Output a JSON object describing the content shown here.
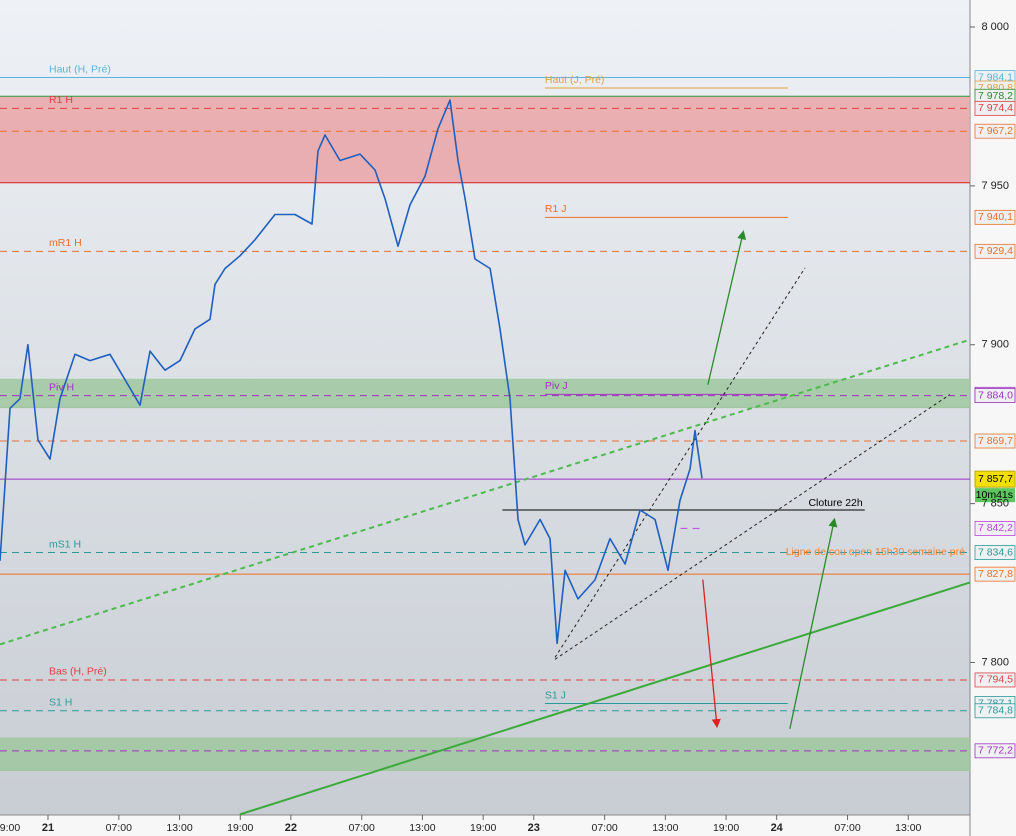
{
  "chart_data": {
    "type": "line",
    "color": "#1f5fbf",
    "x": [
      -4.74,
      -3.75,
      -2.77,
      -1.98,
      -0.99,
      0.2,
      1.19,
      2.67,
      4.15,
      6.13,
      7.61,
      9.09,
      10.08,
      11.56,
      13.04,
      14.53,
      16.01,
      16.5,
      17.49,
      18.97,
      20.45,
      22.43,
      24.41,
      26.09,
      26.68,
      27.37,
      28.85,
      30.83,
      32.31,
      33.3,
      34.58,
      35.77,
      37.25,
      38.54,
      39.72,
      40.51,
      41.21,
      42.19,
      43.68,
      44.66,
      45.65,
      46.44,
      47.13,
      48.62,
      49.6,
      50.3,
      51.09,
      52.37,
      54.05,
      55.53,
      57.02,
      58.5,
      59.98,
      61.26,
      62.45,
      63.44,
      63.93,
      64.62
    ],
    "values": [
      7832,
      7880,
      7883,
      7900,
      7870,
      7864,
      7883,
      7897,
      7895,
      7897,
      7889,
      7881,
      7898,
      7892,
      7895,
      7905,
      7908,
      7919,
      7924,
      7928,
      7933,
      7941,
      7941,
      7938,
      7961,
      7966,
      7958,
      7960,
      7955,
      7946,
      7931,
      7944,
      7953,
      7968,
      7977,
      7958,
      7946,
      7927,
      7924,
      7905,
      7883,
      7845,
      7837,
      7845,
      7839,
      7806,
      7829,
      7820,
      7826,
      7839,
      7831,
      7848,
      7845,
      7829,
      7851,
      7861,
      7873,
      7858
    ],
    "xlim": [
      -4.74,
      91.1
    ],
    "ylim": [
      7752,
      8008.5
    ],
    "xticks": [
      {
        "value": -5,
        "label": "9:00"
      },
      {
        "value": 0,
        "label": "21"
      },
      {
        "value": 7,
        "label": "07:00"
      },
      {
        "value": 13,
        "label": "13:00"
      },
      {
        "value": 19,
        "label": "19:00"
      },
      {
        "value": 24,
        "label": "22"
      },
      {
        "value": 31,
        "label": "07:00"
      },
      {
        "value": 37,
        "label": "13:00"
      },
      {
        "value": 43,
        "label": "19:00"
      },
      {
        "value": 48,
        "label": "23"
      },
      {
        "value": 55,
        "label": "07:00"
      },
      {
        "value": 61,
        "label": "13:00"
      },
      {
        "value": 67,
        "label": "19:00"
      },
      {
        "value": 72,
        "label": "24"
      },
      {
        "value": 79,
        "label": "07:00"
      },
      {
        "value": 85,
        "label": "13:00"
      }
    ],
    "yticks": [
      {
        "value": 8000,
        "label": "8 000"
      },
      {
        "value": 7950,
        "label": "7 950"
      },
      {
        "value": 7900,
        "label": "7 900"
      },
      {
        "value": 7850,
        "label": "7 850"
      },
      {
        "value": 7800,
        "label": "7 800"
      }
    ],
    "zones": [
      {
        "from": 7951,
        "to": 7978,
        "color": "#e9a3a6",
        "border": "#d02020"
      },
      {
        "from": 7880.2,
        "to": 7889.3,
        "color": "#9fc79f",
        "border": "#9fc79f"
      },
      {
        "from": 7766,
        "to": 7776.4,
        "color": "#9fc79f",
        "border": "#9fc79f"
      }
    ],
    "levels": [
      {
        "name": "Haut (H, Pré)",
        "value": 7984.1,
        "label": "7 984,1",
        "color": "#5ab4d6",
        "dashed": false
      },
      {
        "name": "Haut (J, Pré)",
        "value": 7980.8,
        "label": "7 980,8",
        "color": "#e0a040",
        "dashed": false,
        "xrange": [
          49.1,
          73.1
        ]
      },
      {
        "value": 7978.2,
        "label": "7 978,2",
        "color": "#2e8b2e",
        "dashed": false
      },
      {
        "name": "R1 H",
        "value": 7974.4,
        "label": "7 974,4",
        "color": "#e04040",
        "dashed": true
      },
      {
        "value": 7967.2,
        "label": "7 967,2",
        "color": "#e8702a",
        "dashed": true
      },
      {
        "name": "R1 J",
        "value": 7940.1,
        "label": "7 940,1",
        "color": "#e8702a",
        "dashed": false,
        "xrange": [
          49.1,
          73.1
        ]
      },
      {
        "name": "mR1 H",
        "value": 7929.4,
        "label": "7 929,4",
        "color": "#e8702a",
        "dashed": true
      },
      {
        "name": "Piv J",
        "value": 7884.4,
        "label": "7 884,4",
        "color": "#a030c0",
        "dashed": false,
        "xrange": [
          49.1,
          73.1
        ]
      },
      {
        "name": "Piv H",
        "value": 7884.0,
        "label": "7 884,0",
        "color": "#a030c0",
        "dashed": true
      },
      {
        "value": 7869.7,
        "label": "7 869,7",
        "color": "#e8702a",
        "dashed": true
      },
      {
        "value": 7842.2,
        "label": "7 842,2",
        "color": "#c040e0",
        "dashed": true,
        "xrange": [
          62.5,
          64.6
        ]
      },
      {
        "name": "mS1 H",
        "value": 7834.6,
        "label": "7 834,6",
        "color": "#2a9a9a",
        "dashed": true
      },
      {
        "value": 7827.8,
        "label": "7 827,8",
        "color": "#f07020",
        "dashed": false
      },
      {
        "name": "Bas (H, Pré)",
        "value": 7794.5,
        "label": "7 794,5",
        "color": "#e04040",
        "dashed": true
      },
      {
        "name": "S1 J",
        "value": 7787.1,
        "label": "7 787,1",
        "color": "#2a9a9a",
        "dashed": false,
        "xrange": [
          49.1,
          73.1
        ]
      },
      {
        "name": "S1 H",
        "value": 7784.8,
        "label": "7 784,8",
        "color": "#2a9a9a",
        "dashed": true
      },
      {
        "value": 7772.2,
        "label": "7 772,2",
        "color": "#a030c0",
        "dashed": true
      }
    ],
    "current": {
      "value": 7857.7,
      "label": "7 857,7",
      "timer": "10m41s",
      "color": "#9b30c8"
    },
    "closing": {
      "text": "Cloture 22h",
      "value": 7848,
      "xrange": [
        44.9,
        80.7
      ]
    },
    "annotations": [
      {
        "text": "Ligne de cou open 15h30 semaine pré",
        "x": 90.6,
        "y": 7834.7,
        "color": "#f08030"
      }
    ],
    "lines": [
      {
        "x": [
          -4.74,
          91.1
        ],
        "y": [
          7805.7,
          7901.6
        ],
        "color": "#4cbb4c",
        "dashed": true,
        "arrow": false
      },
      {
        "x": [
          18.97,
          91.1
        ],
        "y": [
          7752.2,
          7825.2
        ],
        "color": "#3aaa3a",
        "dashed": false,
        "arrow": false
      },
      {
        "x": [
          50.1,
          74.8
        ],
        "y": [
          7801.6,
          7924.2
        ],
        "color": "#222222",
        "dashed": true,
        "arrow": false
      },
      {
        "x": [
          50.1,
          89.1
        ],
        "y": [
          7801.0,
          7884.3
        ],
        "color": "#222222",
        "dashed": true,
        "arrow": false
      },
      {
        "x": [
          65.2,
          68.7
        ],
        "y": [
          7887.4,
          7935.5
        ],
        "color": "#2a8a2a",
        "dashed": false,
        "arrow": true
      },
      {
        "x": [
          64.7,
          66.1
        ],
        "y": [
          7826.1,
          7779.9
        ],
        "color": "#e02020",
        "dashed": false,
        "arrow": true
      },
      {
        "x": [
          73.3,
          77.7
        ],
        "y": [
          7779.1,
          7845.0
        ],
        "color": "#2a8a2a",
        "dashed": false,
        "arrow": true
      }
    ]
  }
}
